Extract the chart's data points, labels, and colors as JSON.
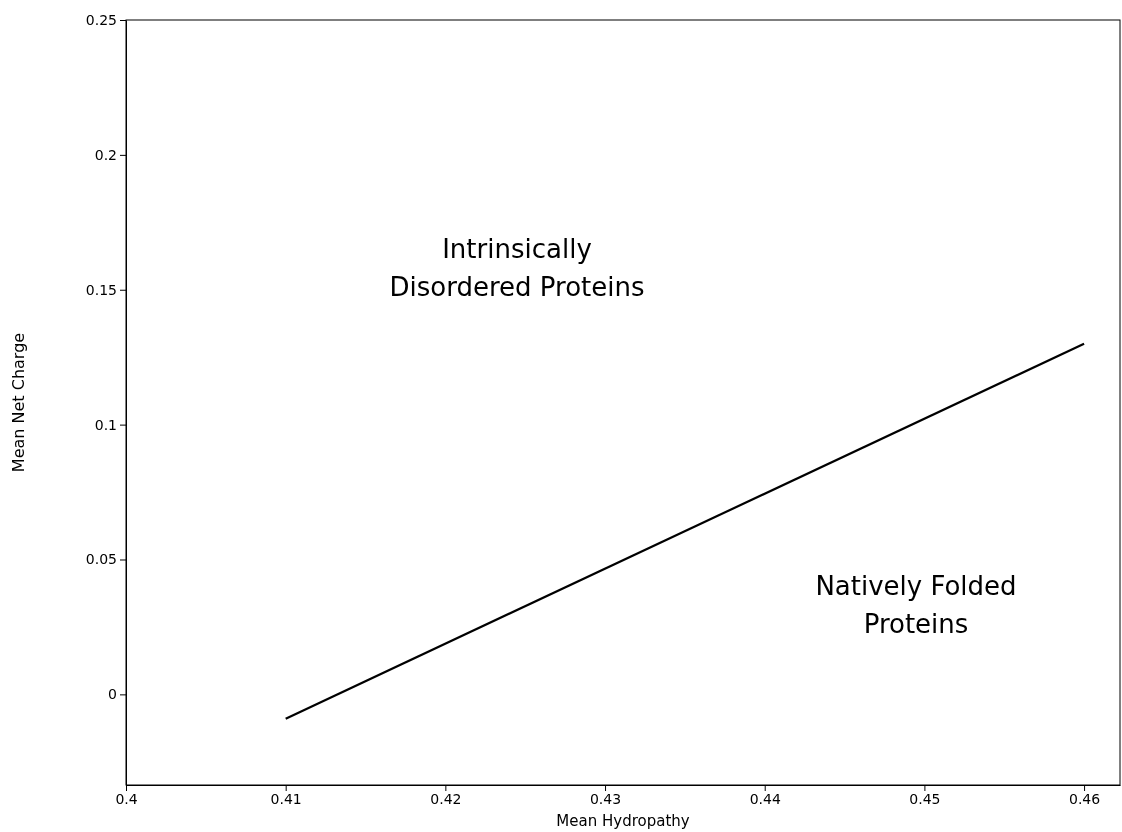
{
  "chart_data": {
    "type": "line",
    "xlabel": "Mean Hydropathy",
    "ylabel": "Mean Net Charge",
    "x": [
      0.41,
      0.46
    ],
    "series": [
      {
        "color": "#000000",
        "values": [
          -0.009,
          0.13
        ]
      }
    ],
    "xlim": [
      0.4,
      0.46225
    ],
    "ylim": [
      -0.0336,
      0.25
    ],
    "xticks": [
      0.4,
      0.41,
      0.42,
      0.43,
      0.44,
      0.45,
      0.46
    ],
    "yticks": [
      0,
      0.05,
      0.1,
      0.15,
      0.2,
      0.25
    ],
    "marker": "none",
    "line_style": "solid",
    "grid": false,
    "annotations": [
      "Intrinsically\nDisordered Proteins",
      "Natively Folded\nProteins"
    ]
  }
}
